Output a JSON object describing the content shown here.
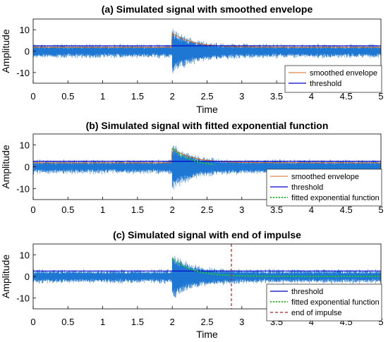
{
  "colors": {
    "signal": "#1f77d4",
    "threshold": "#0000cc",
    "envelope": "#d2691e",
    "fitted": "#22cc22",
    "end_of_impulse": "#b22222",
    "axis": "#000000"
  },
  "chart_data": [
    {
      "type": "line",
      "title": "(a) Simulated signal with smoothed envelope",
      "xlabel": "Time",
      "ylabel": "Amplitude",
      "xlim": [
        0,
        5
      ],
      "ylim": [
        -15,
        15
      ],
      "xticks": [
        "0",
        "0.5",
        "1",
        "1.5",
        "2",
        "2.5",
        "3",
        "3.5",
        "4",
        "4.5",
        "5"
      ],
      "yticks": [
        "-10",
        "0",
        "10"
      ],
      "grid": false,
      "legend_position": "bottom-right",
      "signal": {
        "noise_amplitude": 3.5,
        "impulse_start": 2.0,
        "impulse_peak": 9,
        "decay_rate": 3.5
      },
      "series": [
        {
          "name": "smoothed envelope",
          "kind": "envelope",
          "x_start": 0,
          "x_end": 5,
          "baseline": 1.8,
          "peak": 8.5,
          "peak_at": 2.0,
          "decay_rate": 3.5
        },
        {
          "name": "threshold",
          "kind": "hline",
          "y": 2.5
        }
      ]
    },
    {
      "type": "line",
      "title": "(b) Simulated signal with fitted exponential function",
      "xlabel": "",
      "ylabel": "Amplitude",
      "xlim": [
        0,
        5
      ],
      "ylim": [
        -15,
        15
      ],
      "xticks": [
        "0",
        "0.5",
        "1",
        "1.5",
        "2",
        "2.5",
        "3",
        "3.5",
        "4",
        "4.5",
        "5"
      ],
      "yticks": [
        "-10",
        "0",
        "10"
      ],
      "grid": false,
      "legend_position": "bottom-right",
      "signal": {
        "noise_amplitude": 3.5,
        "impulse_start": 2.0,
        "impulse_peak": 9,
        "decay_rate": 3.5
      },
      "series": [
        {
          "name": "smoothed envelope",
          "kind": "envelope",
          "x_start": 0,
          "x_end": 5,
          "baseline": 1.8,
          "peak": 8.5,
          "peak_at": 2.0,
          "decay_rate": 3.5
        },
        {
          "name": "threshold",
          "kind": "hline",
          "y": 2.5
        },
        {
          "name": "fitted exponential function",
          "kind": "exp",
          "x_start": 2.0,
          "x_end": 2.6,
          "amplitude": 8.5,
          "decay_rate": 3.5
        }
      ]
    },
    {
      "type": "line",
      "title": "(c) Simulated signal with end of impulse",
      "xlabel": "Time",
      "ylabel": "Amplitude",
      "xlim": [
        0,
        5
      ],
      "ylim": [
        -15,
        15
      ],
      "xticks": [
        "0",
        "0.5",
        "1",
        "1.5",
        "2",
        "2.5",
        "3",
        "3.5",
        "4",
        "4.5",
        "5"
      ],
      "yticks": [
        "-10",
        "0",
        "10"
      ],
      "grid": false,
      "legend_position": "bottom-right",
      "signal": {
        "noise_amplitude": 3.5,
        "impulse_start": 2.0,
        "impulse_peak": 9,
        "decay_rate": 3.5
      },
      "series": [
        {
          "name": "threshold",
          "kind": "hline",
          "y": 2.5
        },
        {
          "name": "fitted exponential function",
          "kind": "exp",
          "x_start": 2.0,
          "x_end": 5.0,
          "amplitude": 8.5,
          "decay_rate": 3.5
        },
        {
          "name": "end of impulse",
          "kind": "vline",
          "x": 2.85
        }
      ]
    }
  ]
}
